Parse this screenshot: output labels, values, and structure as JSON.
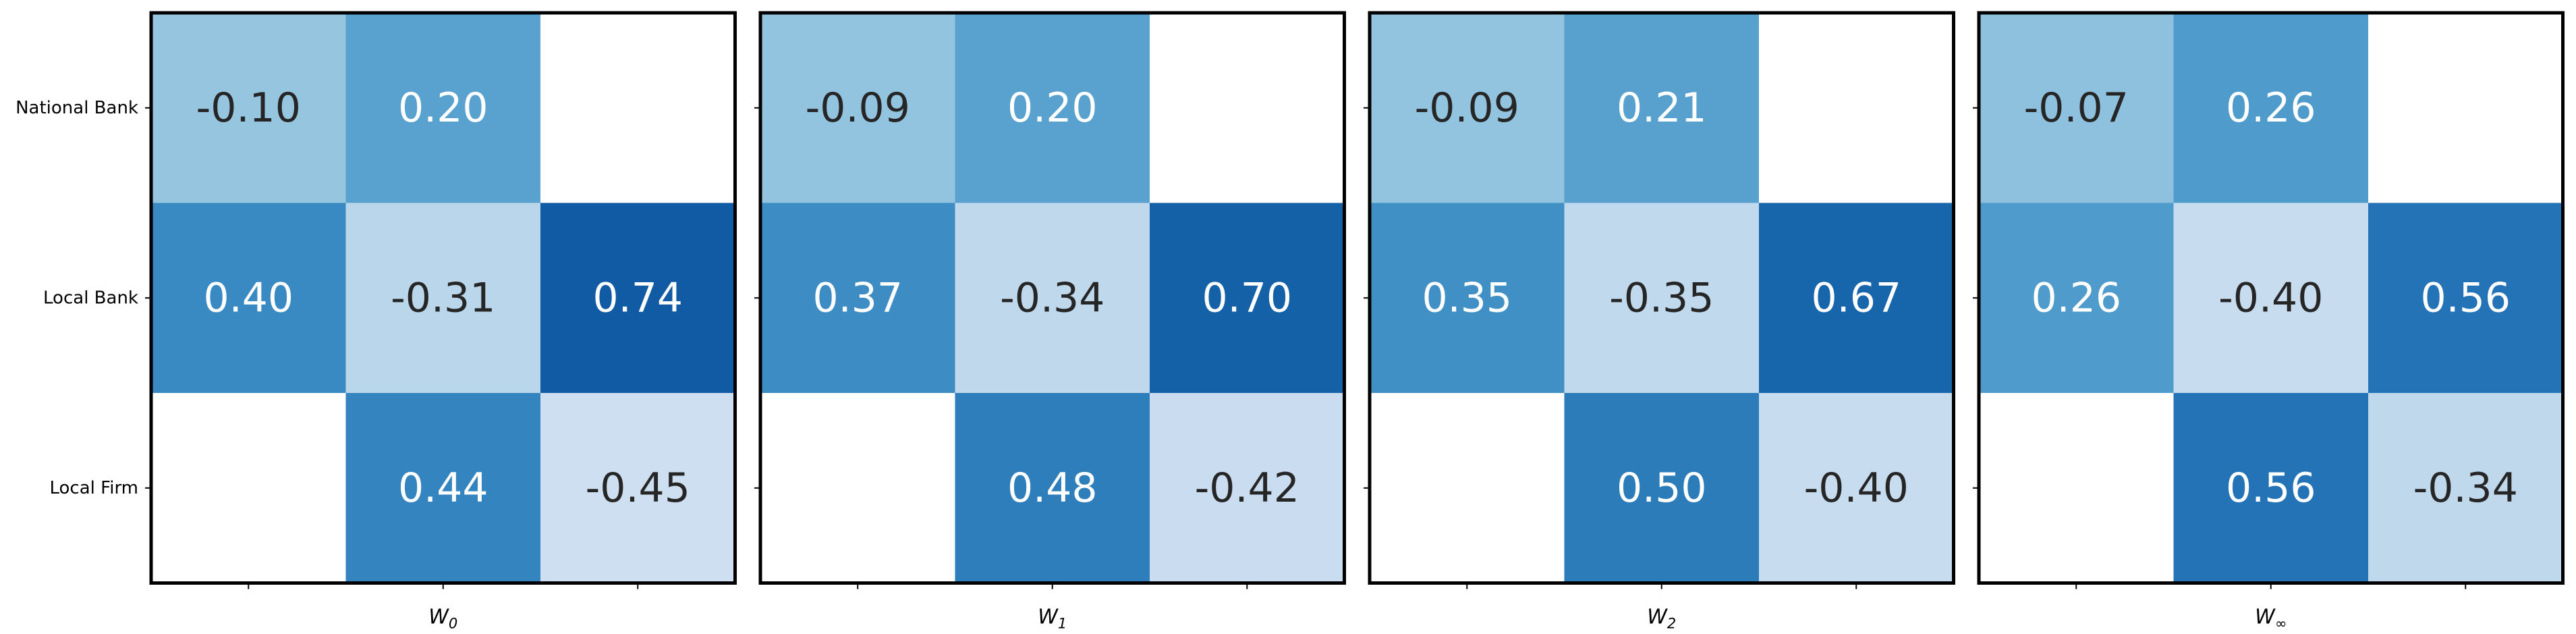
{
  "chart_data": {
    "type": "heatmap",
    "row_labels": [
      "National Bank",
      "Local Bank",
      "Local Firm"
    ],
    "panels": [
      {
        "xlabel_base": "W",
        "xlabel_sub": "0",
        "values": [
          [
            -0.1,
            0.2,
            null
          ],
          [
            0.4,
            -0.31,
            0.74
          ],
          [
            null,
            0.44,
            -0.45
          ]
        ],
        "labels": [
          [
            "-0.10",
            "0.20",
            ""
          ],
          [
            "0.40",
            "-0.31",
            "0.74"
          ],
          [
            "",
            "0.44",
            "-0.45"
          ]
        ]
      },
      {
        "xlabel_base": "W",
        "xlabel_sub": "1",
        "values": [
          [
            -0.09,
            0.2,
            null
          ],
          [
            0.37,
            -0.34,
            0.7
          ],
          [
            null,
            0.48,
            -0.42
          ]
        ],
        "labels": [
          [
            "-0.09",
            "0.20",
            ""
          ],
          [
            "0.37",
            "-0.34",
            "0.70"
          ],
          [
            "",
            "0.48",
            "-0.42"
          ]
        ]
      },
      {
        "xlabel_base": "W",
        "xlabel_sub": "2",
        "values": [
          [
            -0.09,
            0.21,
            null
          ],
          [
            0.35,
            -0.35,
            0.67
          ],
          [
            null,
            0.5,
            -0.4
          ]
        ],
        "labels": [
          [
            "-0.09",
            "0.21",
            ""
          ],
          [
            "0.35",
            "-0.35",
            "0.67"
          ],
          [
            "",
            "0.50",
            "-0.40"
          ]
        ]
      },
      {
        "xlabel_base": "W",
        "xlabel_sub": "∞",
        "values": [
          [
            -0.07,
            0.26,
            null
          ],
          [
            0.26,
            -0.4,
            0.56
          ],
          [
            null,
            0.56,
            -0.34
          ]
        ],
        "labels": [
          [
            "-0.07",
            "0.26",
            ""
          ],
          [
            "0.26",
            "-0.40",
            "0.56"
          ],
          [
            "",
            "0.56",
            "-0.34"
          ]
        ]
      }
    ],
    "colors": {
      "light_text": "#ffffff",
      "dark_text": "#262626"
    }
  }
}
